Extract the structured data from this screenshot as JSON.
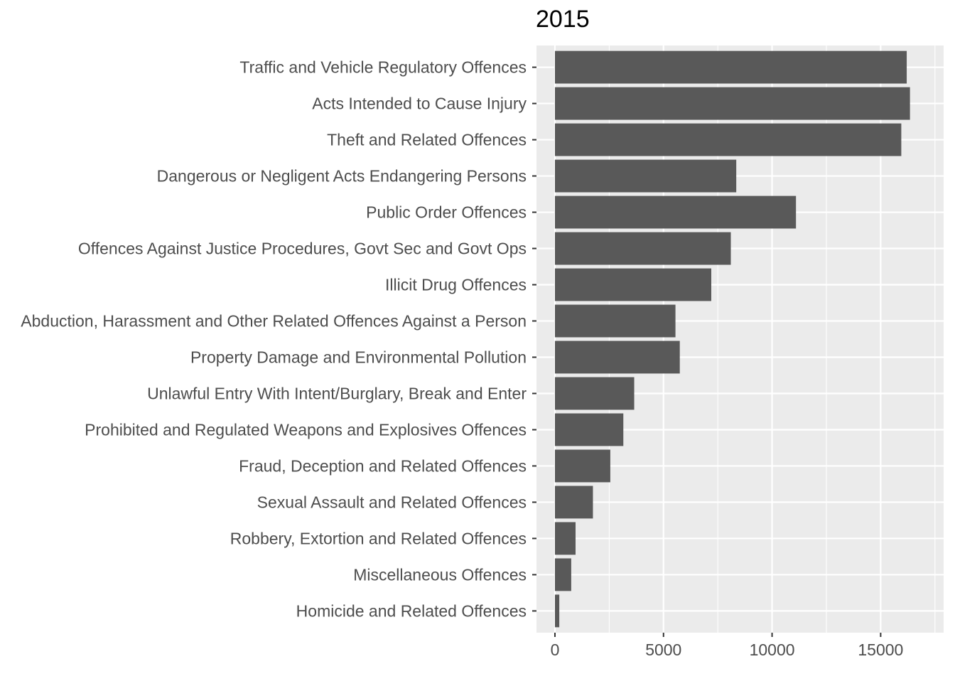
{
  "chart_data": {
    "type": "bar",
    "orientation": "horizontal",
    "title": "2015",
    "xlabel": "",
    "ylabel": "",
    "categories": [
      "Traffic and Vehicle Regulatory Offences",
      "Acts Intended to Cause Injury",
      "Theft and Related Offences",
      "Dangerous or Negligent Acts Endangering Persons",
      "Public Order Offences",
      "Offences Against Justice Procedures, Govt Sec and Govt Ops",
      "Illicit Drug Offences",
      "Abduction, Harassment and Other Related Offences Against a Person",
      "Property Damage and Environmental Pollution",
      "Unlawful Entry With Intent/Burglary, Break and Enter",
      "Prohibited and Regulated Weapons and Explosives Offences",
      "Fraud, Deception and Related Offences",
      "Sexual Assault and Related Offences",
      "Robbery, Extortion and Related Offences",
      "Miscellaneous Offences",
      "Homicide and Related Offences"
    ],
    "values": [
      16200,
      16350,
      15950,
      8350,
      11100,
      8100,
      7200,
      5550,
      5750,
      3650,
      3150,
      2550,
      1750,
      950,
      750,
      200
    ],
    "xlim": [
      -850,
      17900
    ],
    "x_ticks": [
      0,
      5000,
      10000,
      15000
    ],
    "x_tick_labels": [
      "0",
      "5000",
      "10000",
      "15000"
    ],
    "grid": true,
    "legend": "none",
    "colors": {
      "bar": "#595959",
      "panel": "#ebebeb",
      "grid_major": "#ffffff",
      "tick_label": "#4d4d4d",
      "tick": "#333333"
    }
  }
}
